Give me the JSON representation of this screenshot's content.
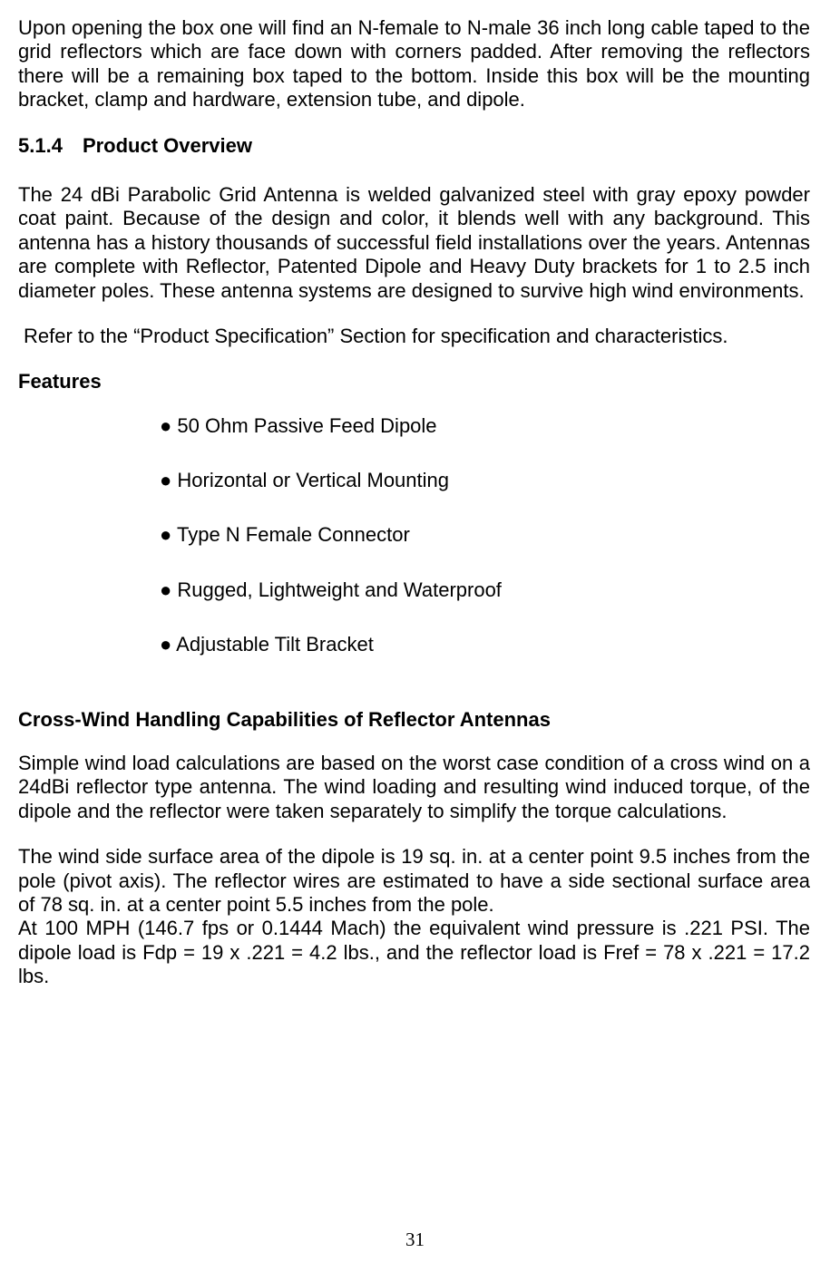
{
  "intro_paragraph": "Upon opening the box one will find an N-female to N-male 36 inch long cable taped to the grid reflectors which are face down with corners padded. After removing the reflectors there will be a remaining box taped to the bottom. Inside this box will be the mounting bracket, clamp and hardware, extension tube, and dipole.",
  "section": {
    "number": "5.1.4",
    "title": "Product Overview"
  },
  "overview_paragraph": "The 24 dBi Parabolic Grid Antenna is welded galvanized steel with gray epoxy powder coat paint. Because of the design and color, it blends well with any background. This antenna has a history thousands of successful field installations over the years. Antennas are complete with Reflector, Patented Dipole and Heavy Duty brackets for 1 to 2.5 inch diameter poles. These antenna systems are designed to survive high wind environments.",
  "refer_line": "Refer to the “Product Specification” Section for specification and characteristics.",
  "features": {
    "heading": "Features",
    "items": [
      "● 50 Ohm Passive Feed Dipole",
      "● Horizontal or Vertical Mounting",
      "● Type N Female Connector",
      "● Rugged, Lightweight and  Waterproof",
      "● Adjustable Tilt Bracket"
    ]
  },
  "crosswind": {
    "heading": "Cross-Wind Handling Capabilities of Reflector Antennas",
    "para1": "Simple wind load calculations are based on the worst case condition of a cross wind on a 24dBi reflector type antenna. The wind loading and resulting wind induced torque, of the dipole and the reflector were taken separately to simplify the torque calculations.",
    "para2a": "The wind side surface area of the dipole is 19 sq. in. at a center point 9.5 inches from the pole (pivot axis). The reflector wires are estimated to have a side sectional surface area of 78 sq. in. at a center point 5.5 inches from the pole.",
    "para2b": "At 100 MPH (146.7 fps or 0.1444 Mach) the equivalent wind pressure is .221 PSI. The dipole load is Fdp = 19 x .221 = 4.2 lbs., and the reflector load is Fref = 78 x .221 = 17.2 lbs."
  },
  "page_number": "31"
}
